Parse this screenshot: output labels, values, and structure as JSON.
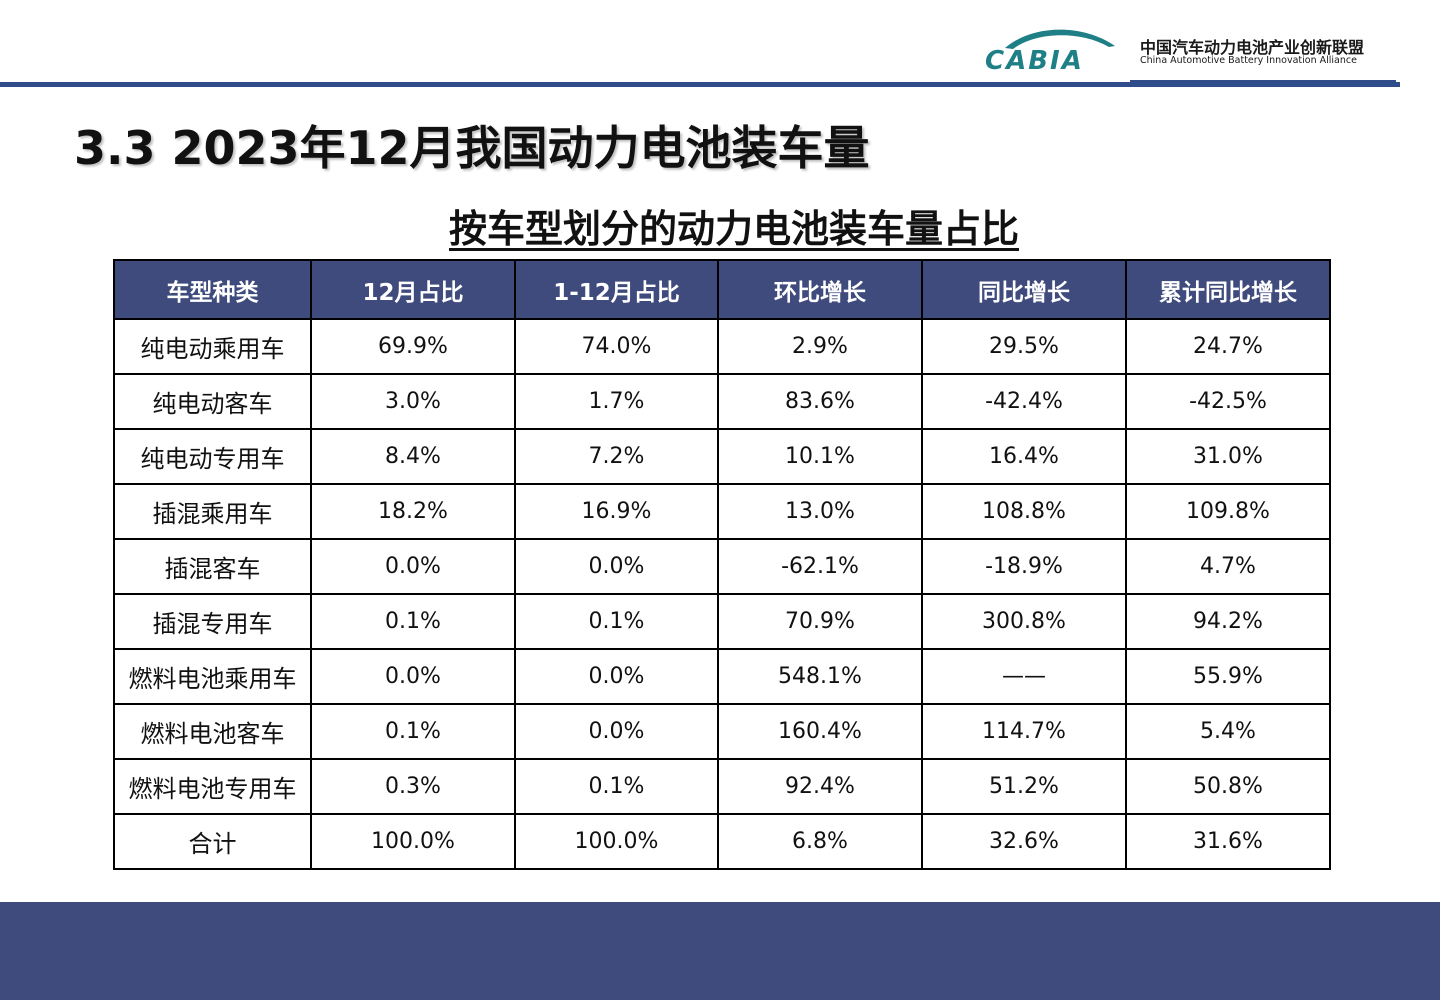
{
  "header": {
    "logo_text": "CABIA",
    "org_name_cn": "中国汽车动力电池产业创新联盟",
    "org_name_en": "China Automotive Battery Innovation Alliance",
    "brand_color": "#1f7f86",
    "rule_color": "#2f4d8a"
  },
  "page_title": "3.3 2023年12月我国动力电池装车量",
  "table_title": "按车型划分的动力电池装车量占比",
  "table": {
    "header_color": "#3f4a7d",
    "columns": [
      "车型种类",
      "12月占比",
      "1-12月占比",
      "环比增长",
      "同比增长",
      "累计同比增长"
    ],
    "rows": [
      [
        "纯电动乘用车",
        "69.9%",
        "74.0%",
        "2.9%",
        "29.5%",
        "24.7%"
      ],
      [
        "纯电动客车",
        "3.0%",
        "1.7%",
        "83.6%",
        "-42.4%",
        "-42.5%"
      ],
      [
        "纯电动专用车",
        "8.4%",
        "7.2%",
        "10.1%",
        "16.4%",
        "31.0%"
      ],
      [
        "插混乘用车",
        "18.2%",
        "16.9%",
        "13.0%",
        "108.8%",
        "109.8%"
      ],
      [
        "插混客车",
        "0.0%",
        "0.0%",
        "-62.1%",
        "-18.9%",
        "4.7%"
      ],
      [
        "插混专用车",
        "0.1%",
        "0.1%",
        "70.9%",
        "300.8%",
        "94.2%"
      ],
      [
        "燃料电池乘用车",
        "0.0%",
        "0.0%",
        "548.1%",
        "——",
        "55.9%"
      ],
      [
        "燃料电池客车",
        "0.1%",
        "0.0%",
        "160.4%",
        "114.7%",
        "5.4%"
      ],
      [
        "燃料电池专用车",
        "0.3%",
        "0.1%",
        "92.4%",
        "51.2%",
        "50.8%"
      ],
      [
        "合计",
        "100.0%",
        "100.0%",
        "6.8%",
        "32.6%",
        "31.6%"
      ]
    ]
  },
  "footer": {
    "color": "#3f4a7d"
  }
}
